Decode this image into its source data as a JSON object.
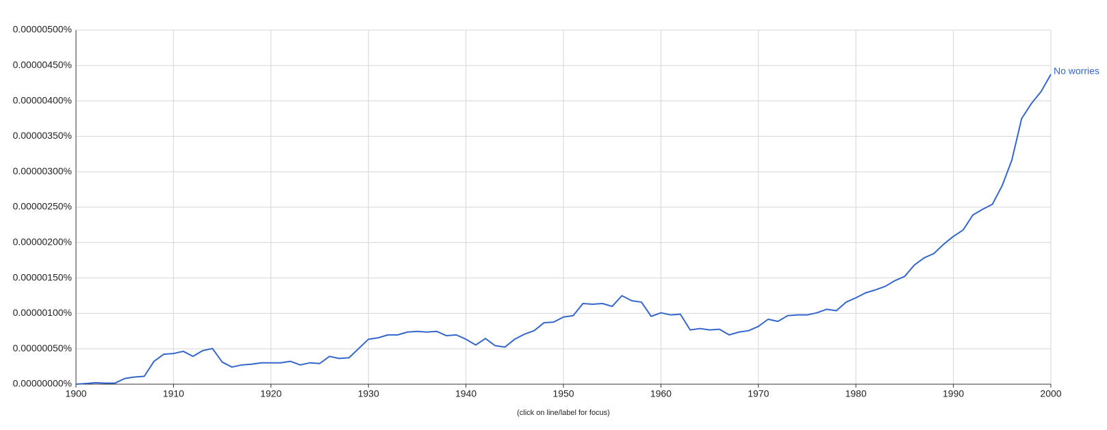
{
  "chart_data": {
    "type": "line",
    "note": "(click on line/label for focus)",
    "x": [
      1900,
      1901,
      1902,
      1903,
      1904,
      1905,
      1906,
      1907,
      1908,
      1909,
      1910,
      1911,
      1912,
      1913,
      1914,
      1915,
      1916,
      1917,
      1918,
      1919,
      1920,
      1921,
      1922,
      1923,
      1924,
      1925,
      1926,
      1927,
      1928,
      1929,
      1930,
      1931,
      1932,
      1933,
      1934,
      1935,
      1936,
      1937,
      1938,
      1939,
      1940,
      1941,
      1942,
      1943,
      1944,
      1945,
      1946,
      1947,
      1948,
      1949,
      1950,
      1951,
      1952,
      1953,
      1954,
      1955,
      1956,
      1957,
      1958,
      1959,
      1960,
      1961,
      1962,
      1963,
      1964,
      1965,
      1966,
      1967,
      1968,
      1969,
      1970,
      1971,
      1972,
      1973,
      1974,
      1975,
      1976,
      1977,
      1978,
      1979,
      1980,
      1981,
      1982,
      1983,
      1984,
      1985,
      1986,
      1987,
      1988,
      1989,
      1990,
      1991,
      1992,
      1993,
      1994,
      1995,
      1996,
      1997,
      1998,
      1999,
      2000
    ],
    "series": [
      {
        "name": "No worries",
        "color": "#3366cc",
        "values": [
          0,
          1e-08,
          2e-08,
          1.5e-08,
          1.5e-08,
          8.1e-08,
          1.01e-07,
          1.11e-07,
          3.23e-07,
          4.23e-07,
          4.33e-07,
          4.64e-07,
          3.93e-07,
          4.74e-07,
          5.04e-07,
          3.12e-07,
          2.42e-07,
          2.72e-07,
          2.82e-07,
          3.02e-07,
          3.02e-07,
          3.02e-07,
          3.23e-07,
          2.72e-07,
          3.02e-07,
          2.92e-07,
          3.93e-07,
          3.63e-07,
          3.73e-07,
          5.04e-07,
          6.35e-07,
          6.55e-07,
          6.96e-07,
          6.96e-07,
          7.36e-07,
          7.46e-07,
          7.36e-07,
          7.46e-07,
          6.85e-07,
          6.96e-07,
          6.35e-07,
          5.54e-07,
          6.45e-07,
          5.44e-07,
          5.24e-07,
          6.35e-07,
          7.06e-07,
          7.56e-07,
          8.67e-07,
          8.77e-07,
          9.48e-07,
          9.68e-07,
          1.139e-06,
          1.129e-06,
          1.139e-06,
          1.099e-06,
          1.25e-06,
          1.179e-06,
          1.159e-06,
          9.58e-07,
          1.008e-06,
          9.78e-07,
          9.88e-07,
          7.66e-07,
          7.86e-07,
          7.66e-07,
          7.76e-07,
          6.96e-07,
          7.36e-07,
          7.56e-07,
          8.16e-07,
          9.17e-07,
          8.87e-07,
          9.68e-07,
          9.78e-07,
          9.78e-07,
          1.008e-06,
          1.058e-06,
          1.038e-06,
          1.159e-06,
          1.22e-06,
          1.29e-06,
          1.331e-06,
          1.381e-06,
          1.462e-06,
          1.522e-06,
          1.683e-06,
          1.784e-06,
          1.845e-06,
          1.976e-06,
          2.087e-06,
          2.177e-06,
          2.389e-06,
          2.47e-06,
          2.54e-06,
          2.802e-06,
          3.165e-06,
          3.75e-06,
          3.962e-06,
          4.133e-06,
          4.375e-06
        ]
      }
    ],
    "xlim": [
      1900,
      2000
    ],
    "xticks": [
      1900,
      1910,
      1920,
      1930,
      1940,
      1950,
      1960,
      1970,
      1980,
      1990,
      2000
    ],
    "ylim": [
      0,
      5e-06
    ],
    "yticks": [
      {
        "value": 0,
        "label": "0.00000000%"
      },
      {
        "value": 5e-07,
        "label": "0.00000050%"
      },
      {
        "value": 1e-06,
        "label": "0.00000100%"
      },
      {
        "value": 1.5e-06,
        "label": "0.00000150%"
      },
      {
        "value": 2e-06,
        "label": "0.00000200%"
      },
      {
        "value": 2.5e-06,
        "label": "0.00000250%"
      },
      {
        "value": 3e-06,
        "label": "0.00000300%"
      },
      {
        "value": 3.5e-06,
        "label": "0.00000350%"
      },
      {
        "value": 4e-06,
        "label": "0.00000400%"
      },
      {
        "value": 4.5e-06,
        "label": "0.00000450%"
      },
      {
        "value": 5e-06,
        "label": "0.00000500%"
      }
    ],
    "grid": true
  }
}
